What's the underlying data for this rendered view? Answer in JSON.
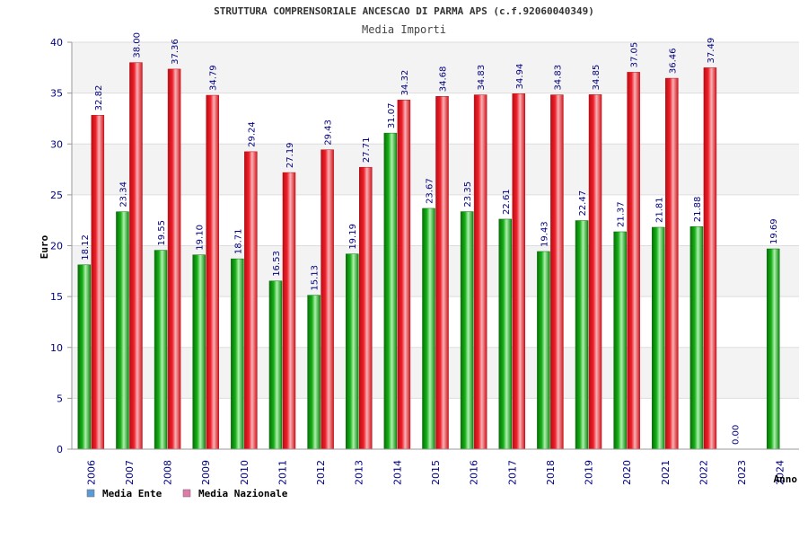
{
  "chart_data": {
    "type": "bar",
    "title": "STRUTTURA COMPRENSORIALE ANCESCAO DI PARMA APS (c.f.92060040349)",
    "subtitle": "Media Importi",
    "ylabel": "Euro",
    "xlabel": "Anno",
    "ylim": [
      0,
      40
    ],
    "yticks": [
      "0",
      "5",
      "10",
      "15",
      "20",
      "25",
      "30",
      "35",
      "40"
    ],
    "categories": [
      "2006",
      "2007",
      "2008",
      "2009",
      "2010",
      "2011",
      "2012",
      "2013",
      "2014",
      "2015",
      "2016",
      "2017",
      "2018",
      "2019",
      "2020",
      "2021",
      "2022",
      "2023",
      "2024"
    ],
    "series": [
      {
        "name": "Media Ente",
        "color": "#19b019",
        "values": [
          18.12,
          23.34,
          19.55,
          19.1,
          18.71,
          16.53,
          15.13,
          19.19,
          31.07,
          23.67,
          23.35,
          22.61,
          19.43,
          22.47,
          21.37,
          21.81,
          21.88,
          0.0,
          19.69
        ],
        "labels": [
          "18.12",
          "23.34",
          "19.55",
          "19.10",
          "18.71",
          "16.53",
          "15.13",
          "19.19",
          "31.07",
          "23.67",
          "23.35",
          "22.61",
          "19.43",
          "22.47",
          "21.37",
          "21.81",
          "21.88",
          "0.00",
          "19.69"
        ]
      },
      {
        "name": "Media Nazionale",
        "color": "#e8202a",
        "values": [
          32.82,
          38.0,
          37.36,
          34.79,
          29.24,
          27.19,
          29.43,
          27.71,
          34.32,
          34.68,
          34.83,
          34.94,
          34.83,
          34.85,
          37.05,
          36.46,
          37.49,
          null,
          null
        ],
        "labels": [
          "32.82",
          "38.00",
          "37.36",
          "34.79",
          "29.24",
          "27.19",
          "29.43",
          "27.71",
          "34.32",
          "34.68",
          "34.83",
          "34.94",
          "34.83",
          "34.85",
          "37.05",
          "36.46",
          "37.49",
          null,
          null
        ]
      }
    ],
    "legend": [
      {
        "label": "Media Ente",
        "color": "#5b9bd5"
      },
      {
        "label": "Media Nazionale",
        "color": "#e07aa8"
      }
    ],
    "grid": true,
    "legend_position": "bottom-left"
  }
}
